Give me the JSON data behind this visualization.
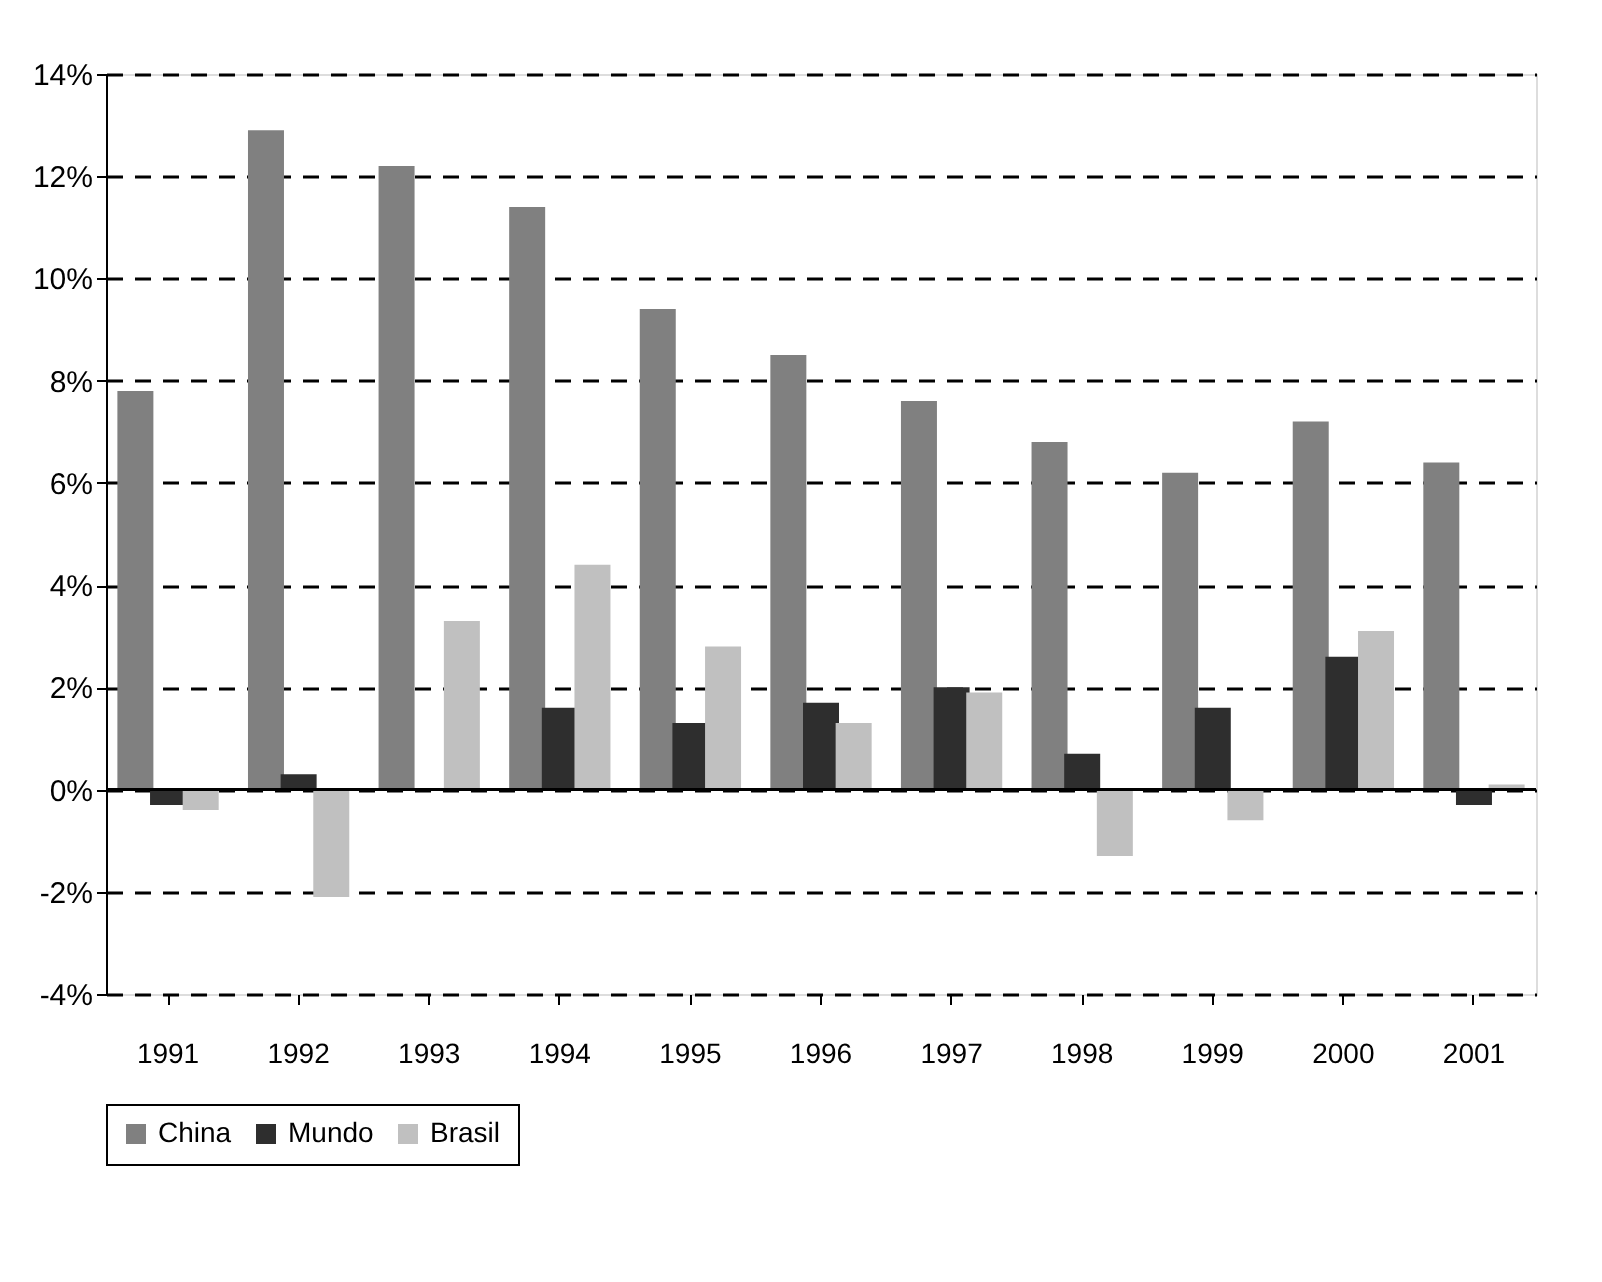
{
  "chart_data": {
    "type": "bar",
    "categories": [
      "1991",
      "1992",
      "1993",
      "1994",
      "1995",
      "1996",
      "1997",
      "1998",
      "1999",
      "2000",
      "2001"
    ],
    "series": [
      {
        "name": "China",
        "color": "#808080",
        "values": [
          7.8,
          12.9,
          12.2,
          11.4,
          9.4,
          8.5,
          7.6,
          6.8,
          6.2,
          7.2,
          6.4
        ]
      },
      {
        "name": "Mundo",
        "color": "#2e2e2e",
        "values": [
          -0.3,
          0.3,
          0,
          1.6,
          1.3,
          1.7,
          2.0,
          0.7,
          1.6,
          2.6,
          -0.3
        ]
      },
      {
        "name": "Brasil",
        "color": "#c0c0c0",
        "values": [
          -0.4,
          -2.1,
          3.3,
          4.4,
          2.8,
          1.3,
          1.9,
          -1.3,
          -0.6,
          3.1,
          0.1
        ]
      }
    ],
    "ylim": [
      -4,
      14
    ],
    "yticks": [
      {
        "value": -4,
        "label": "-4%"
      },
      {
        "value": -2,
        "label": "-2%"
      },
      {
        "value": 0,
        "label": "0%"
      },
      {
        "value": 2,
        "label": "2%"
      },
      {
        "value": 4,
        "label": "4%"
      },
      {
        "value": 6,
        "label": "6%"
      },
      {
        "value": 8,
        "label": "8%"
      },
      {
        "value": 10,
        "label": "10%"
      },
      {
        "value": 12,
        "label": "12%"
      },
      {
        "value": 14,
        "label": "14%"
      }
    ],
    "grid": "y",
    "line_style": "dashed",
    "legend": "bottom"
  }
}
